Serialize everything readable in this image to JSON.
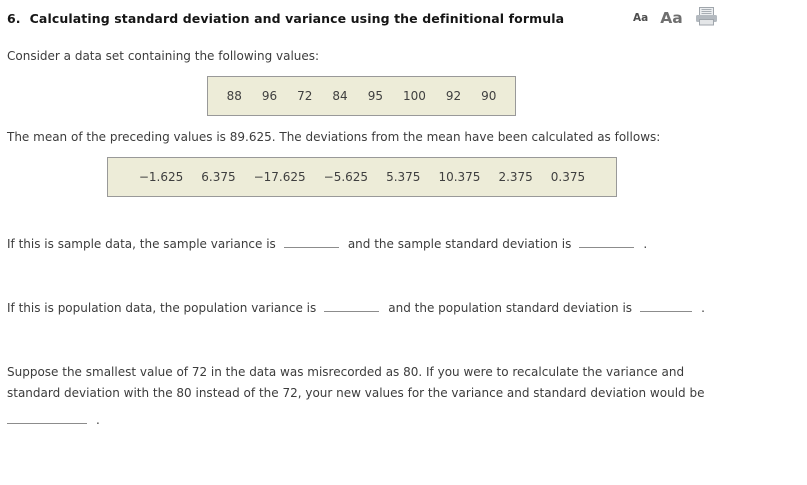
{
  "header": {
    "number": "6.",
    "title": "Calculating standard deviation and variance using the definitional formula",
    "font_small_label": "Aa",
    "font_large_label": "Aa",
    "print_icon": "printer-icon"
  },
  "intro_text": "Consider a data set containing the following values:",
  "data_values": [
    "88",
    "96",
    "72",
    "84",
    "95",
    "100",
    "92",
    "90"
  ],
  "mean_text": "The mean of the preceding values is 89.625. The deviations from the mean have been calculated as follows:",
  "deviations": [
    "−1.625",
    "6.375",
    "−17.625",
    "−5.625",
    "5.375",
    "10.375",
    "2.375",
    "0.375"
  ],
  "sample_question": {
    "part1": "If this is sample data, the sample variance is",
    "part2": "and the sample standard deviation is",
    "end": "."
  },
  "population_question": {
    "part1": "If this is population data, the population variance is",
    "part2": "and the population standard deviation is",
    "end": "."
  },
  "recalc_question": {
    "text": "Suppose the smallest value of 72 in the data was misrecorded as 80. If you were to recalculate the variance and standard deviation with the 80 instead of the 72, your new values for the variance and standard deviation would be",
    "end": "."
  },
  "colors": {
    "box_background": "#edecd8",
    "box_border": "#999999",
    "body_text": "#3c3c3c",
    "title_text": "#161616",
    "blank_underline": "#8c8c8c"
  }
}
